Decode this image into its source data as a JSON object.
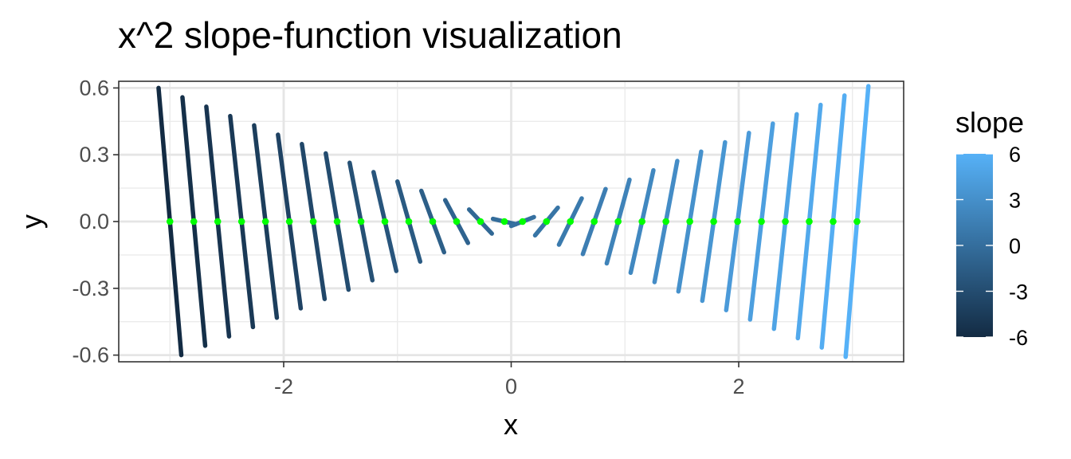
{
  "chart_data": {
    "type": "slope-field",
    "title": "x^2 slope-function visualization",
    "xlabel": "x",
    "ylabel": "y",
    "xlim": [
      -3.45,
      3.45
    ],
    "ylim": [
      -0.63,
      0.63
    ],
    "x_ticks": [
      -2,
      0,
      2
    ],
    "x_tick_labels": [
      "-2",
      "0",
      "2"
    ],
    "y_ticks": [
      0.6,
      0.3,
      0.0,
      -0.3,
      -0.6
    ],
    "y_tick_labels": [
      "0.6",
      "0.3",
      "0.0",
      "-0.3",
      "-0.6"
    ],
    "grid": true,
    "segment_half_length": 0.1,
    "slope_function": "2x",
    "points": {
      "x": [
        -3.0,
        -2.79,
        -2.58,
        -2.37,
        -2.16,
        -1.95,
        -1.74,
        -1.53,
        -1.32,
        -1.11,
        -0.9,
        -0.69,
        -0.48,
        -0.27,
        -0.06,
        0.1,
        0.31,
        0.52,
        0.73,
        0.94,
        1.15,
        1.36,
        1.57,
        1.78,
        1.99,
        2.2,
        2.41,
        2.62,
        2.83,
        3.04
      ],
      "y": [
        0,
        0,
        0,
        0,
        0,
        0,
        0,
        0,
        0,
        0,
        0,
        0,
        0,
        0,
        0,
        0,
        0,
        0,
        0,
        0,
        0,
        0,
        0,
        0,
        0,
        0,
        0,
        0,
        0,
        0
      ],
      "color": "#00ff00"
    },
    "legend": {
      "title": "slope",
      "position": "right",
      "ticks": [
        6,
        3,
        0,
        -3,
        -6
      ],
      "tick_labels": [
        "6",
        "3",
        "0",
        "-3",
        "-6"
      ],
      "range": [
        -6,
        6
      ],
      "low_color": "#132b43",
      "high_color": "#56b1f7"
    }
  }
}
